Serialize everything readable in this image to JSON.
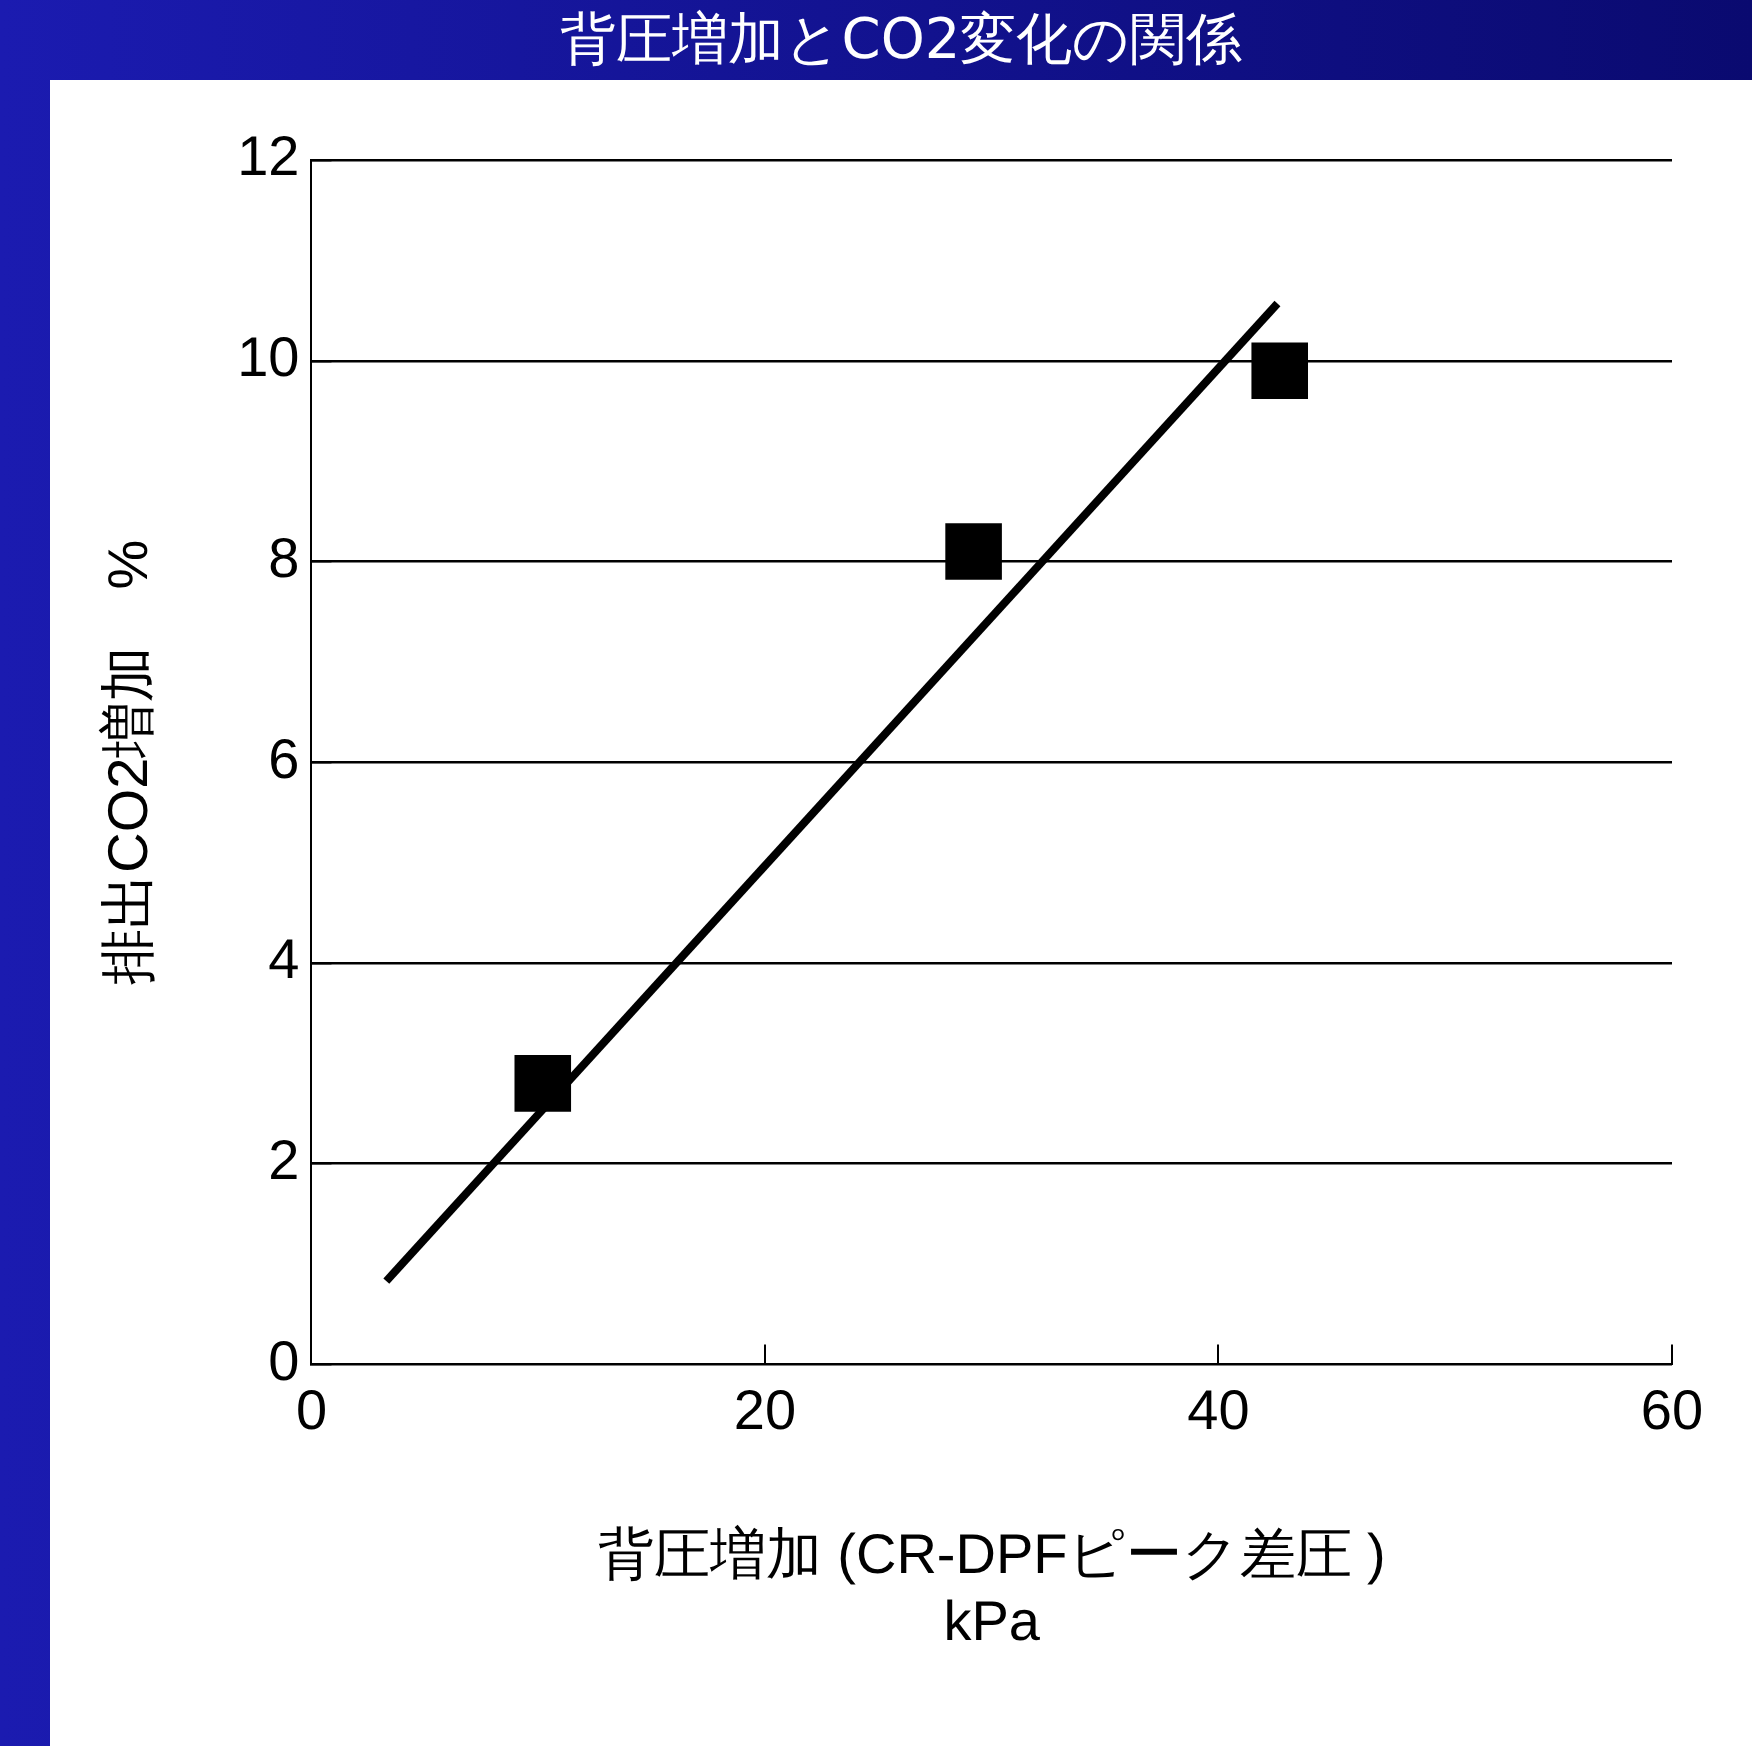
{
  "chart_data": {
    "type": "scatter",
    "title": "背圧増加とCO2変化の関係",
    "xlabel": "背圧増加 (CR-DPFピーク差圧 )\nkPa",
    "ylabel": "排出CO2増加　%",
    "xlim": [
      0,
      60
    ],
    "xticks": [
      0,
      20,
      40,
      60
    ],
    "ylim": [
      0,
      12
    ],
    "yticks": [
      0,
      2,
      4,
      6,
      8,
      10,
      12
    ],
    "grid": "y",
    "legend": false,
    "series": [
      {
        "type": "scatter",
        "color": "#000000",
        "marker": "square",
        "x": [
          10.2,
          29.2,
          42.7
        ],
        "values": [
          2.8,
          8.1,
          9.9
        ]
      },
      {
        "type": "line",
        "color": "#000000",
        "marker": "none",
        "line_style": "solid",
        "x": [
          3.3,
          42.6
        ],
        "values": [
          0.83,
          10.57
        ]
      }
    ]
  }
}
